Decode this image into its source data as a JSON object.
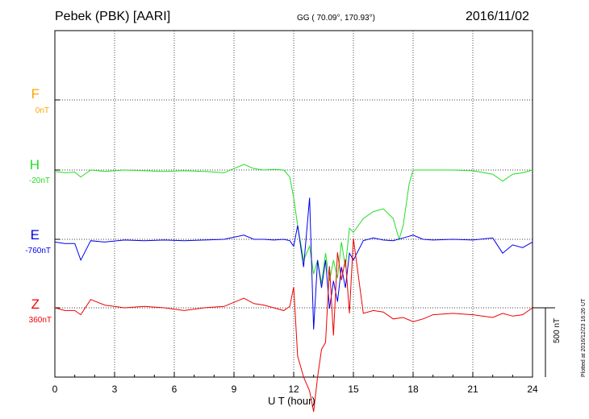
{
  "header": {
    "station": "Pebek (PBK)  [AARI]",
    "coords": "GG ( 70.09°, 170.93°)",
    "date": "2016/11/02"
  },
  "channels": [
    {
      "name": "F",
      "offset": "0nT",
      "color": "#ffa500"
    },
    {
      "name": "H",
      "offset": "-20nT",
      "color": "#22dd22"
    },
    {
      "name": "E",
      "offset": "-760nT",
      "color": "#0000ee"
    },
    {
      "name": "Z",
      "offset": "360nT",
      "color": "#ee0000"
    }
  ],
  "x_axis": {
    "label": "U T (hour)",
    "ticks": [
      "0",
      "3",
      "6",
      "9",
      "12",
      "15",
      "18",
      "21",
      "24"
    ]
  },
  "scale_bar": {
    "label": "500 nT",
    "value_nT": 500
  },
  "plotted": "Plotted at 2016/12/23 16:26 UT",
  "chart_data": {
    "type": "line",
    "x_unit": "hour (UT)",
    "xlim": [
      0,
      24
    ],
    "y_unit": "nT, relative to channel baseline",
    "series": [
      {
        "name": "H",
        "x": [
          0,
          0.5,
          1,
          1.3,
          1.8,
          2.5,
          3.5,
          4.5,
          5.5,
          6.5,
          7.5,
          8.5,
          9.5,
          10,
          10.5,
          11,
          11.5,
          11.8,
          12,
          12.2,
          12.5,
          12.8,
          13,
          13.2,
          13.4,
          13.6,
          13.8,
          14,
          14.2,
          14.4,
          14.6,
          14.8,
          15,
          15.5,
          16,
          16.5,
          17,
          17.3,
          17.5,
          17.8,
          18,
          18.5,
          19,
          20,
          21,
          22,
          22.5,
          23,
          23.5,
          24
        ],
        "y": [
          -10,
          -20,
          -15,
          -50,
          0,
          -10,
          0,
          -5,
          -10,
          -5,
          -10,
          -20,
          40,
          10,
          0,
          5,
          0,
          -50,
          -200,
          -400,
          -650,
          -550,
          -750,
          -650,
          -820,
          -600,
          -800,
          -650,
          -780,
          -520,
          -700,
          -420,
          -450,
          -350,
          -300,
          -280,
          -350,
          -500,
          -400,
          -100,
          0,
          0,
          0,
          0,
          -5,
          -30,
          -80,
          -30,
          -20,
          0
        ]
      },
      {
        "name": "E",
        "x": [
          0,
          0.5,
          1,
          1.3,
          1.8,
          2.5,
          3.5,
          4.5,
          5.5,
          6.5,
          7.5,
          8.5,
          9.5,
          10,
          10.5,
          11,
          11.5,
          11.8,
          12,
          12.2,
          12.5,
          12.8,
          13,
          13.2,
          13.4,
          13.6,
          13.8,
          14,
          14.2,
          14.4,
          14.6,
          14.8,
          15,
          15.5,
          16,
          16.5,
          17,
          17.5,
          18,
          18.5,
          19,
          20,
          21,
          22,
          22.5,
          23,
          23.5,
          24
        ],
        "y": [
          -20,
          -30,
          -30,
          -150,
          -10,
          -20,
          -5,
          -10,
          -5,
          -10,
          -5,
          0,
          30,
          0,
          0,
          -5,
          0,
          -10,
          -50,
          100,
          -200,
          300,
          -650,
          -150,
          -350,
          -150,
          -500,
          -300,
          -450,
          -200,
          -350,
          -100,
          -150,
          -10,
          10,
          -5,
          -10,
          10,
          30,
          0,
          -5,
          0,
          -5,
          10,
          -100,
          -40,
          -60,
          -20
        ]
      },
      {
        "name": "Z",
        "x": [
          0,
          0.5,
          1,
          1.3,
          1.8,
          2.5,
          3.5,
          4.5,
          5.5,
          6.5,
          7.5,
          8.5,
          9.5,
          10,
          10.5,
          11,
          11.5,
          11.8,
          12,
          12.2,
          12.5,
          12.8,
          13,
          13.2,
          13.4,
          13.6,
          13.8,
          14,
          14.2,
          14.4,
          14.6,
          14.8,
          15,
          15.5,
          16,
          16.5,
          17,
          17.5,
          18,
          18.5,
          19,
          20,
          21,
          22,
          22.5,
          23,
          23.5,
          24
        ],
        "y": [
          0,
          -20,
          -20,
          -50,
          60,
          20,
          0,
          10,
          0,
          -20,
          0,
          10,
          70,
          30,
          20,
          0,
          -20,
          10,
          150,
          -350,
          -500,
          -600,
          -750,
          -500,
          -300,
          -250,
          300,
          -200,
          400,
          200,
          350,
          -40,
          500,
          -40,
          -20,
          -30,
          -80,
          -70,
          -100,
          -80,
          -50,
          -40,
          -50,
          -70,
          -40,
          -60,
          -50,
          0
        ]
      }
    ]
  }
}
